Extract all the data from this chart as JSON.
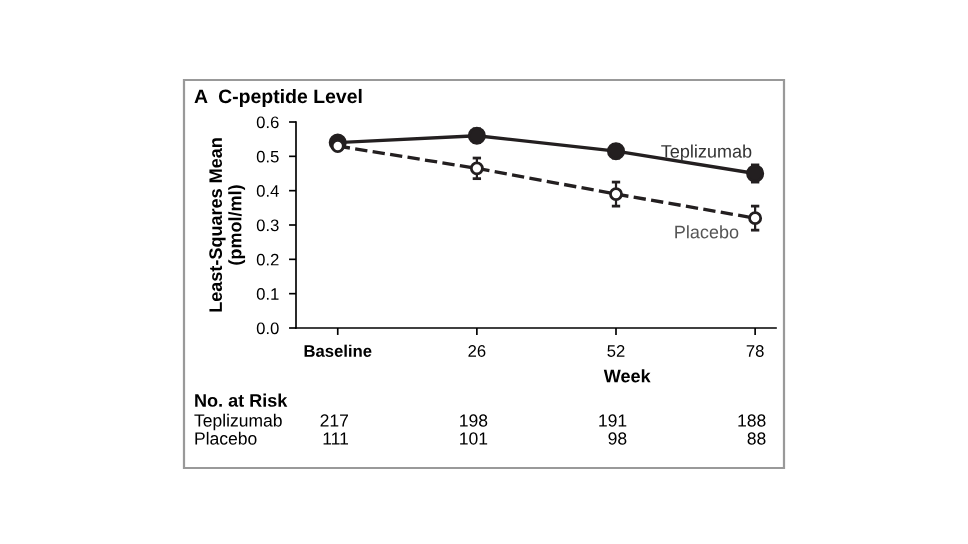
{
  "chart_data": {
    "type": "line",
    "title": "A  C-peptide Level",
    "xlabel": "Week",
    "ylabel": "Least-Squares Mean\n(pmol/ml)",
    "categories": [
      "Baseline",
      "26",
      "52",
      "78"
    ],
    "series": [
      {
        "name": "Teplizumab",
        "color": "#231f20",
        "values": [
          0.54,
          0.56,
          0.515,
          0.45
        ],
        "errors": [
          0.01,
          0.02,
          0.02,
          0.025
        ],
        "marker": "circle",
        "line_style": "solid"
      },
      {
        "name": "Placebo",
        "color": "#231f20",
        "values": [
          0.53,
          0.465,
          0.39,
          0.32
        ],
        "errors": [
          0.01,
          0.03,
          0.035,
          0.035
        ],
        "marker": "circle",
        "line_style": "dashed"
      }
    ],
    "ylim": [
      0,
      0.6
    ],
    "yticks": [
      {
        "value": 0,
        "label": "0.0"
      },
      0.1,
      0.2,
      0.3,
      0.4,
      0.5,
      0.6
    ],
    "grid": false,
    "legend": false,
    "annotations": [
      "No. at Risk",
      "Teplizumab",
      "217",
      "198",
      "191",
      "188",
      "Placebo",
      "111",
      "101",
      "98",
      "88"
    ]
  }
}
